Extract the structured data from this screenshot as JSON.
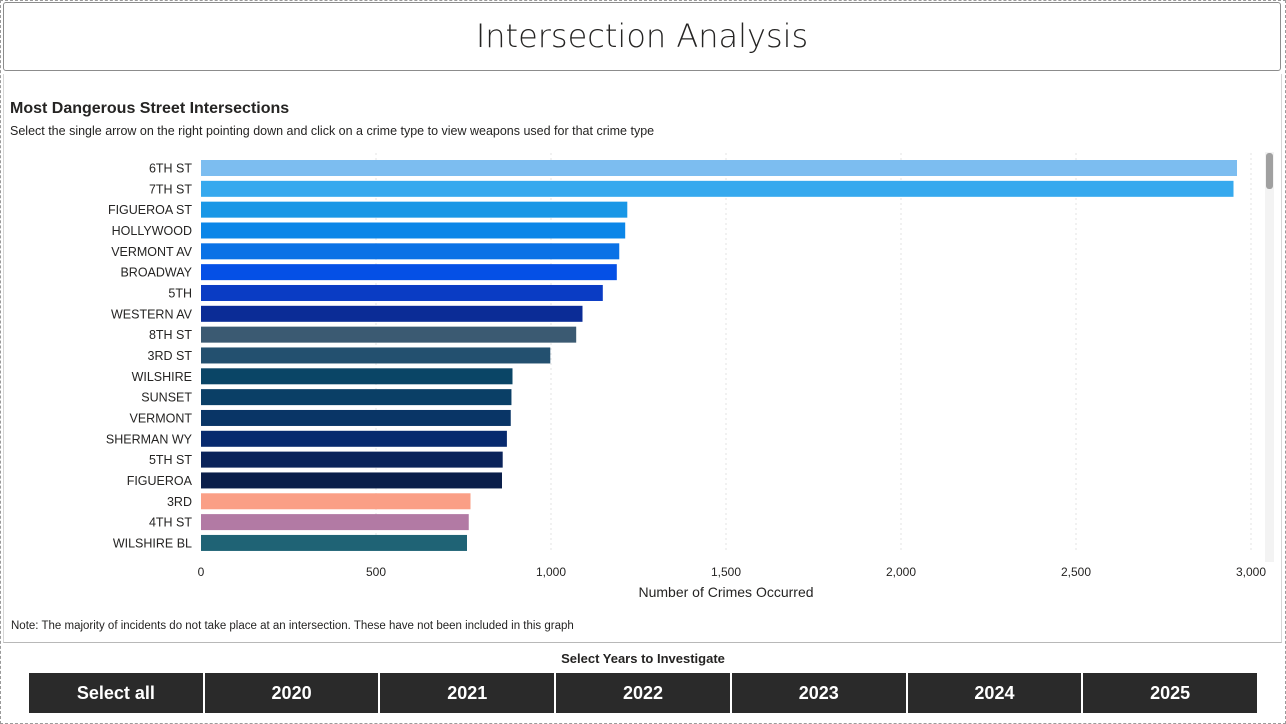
{
  "header": {
    "title": "Intersection Analysis"
  },
  "chart_header": {
    "title": "Most Dangerous Street Intersections",
    "subtitle": "Select the single arrow on the right pointing down and click on a crime type to view weapons used for that crime type"
  },
  "note": "Note: The majority of incidents do not take place at an intersection. These have not been included in this graph",
  "chart_data": {
    "type": "bar",
    "orientation": "horizontal",
    "categories": [
      "6TH ST",
      "7TH ST",
      "FIGUEROA ST",
      "HOLLYWOOD",
      "VERMONT AV",
      "BROADWAY",
      "5TH",
      "WESTERN AV",
      "8TH ST",
      "3RD ST",
      "WILSHIRE",
      "SUNSET",
      "VERMONT",
      "SHERMAN WY",
      "5TH ST",
      "FIGUEROA",
      "3RD",
      "4TH ST",
      "WILSHIRE BL"
    ],
    "values": [
      2960,
      2950,
      1218,
      1212,
      1195,
      1188,
      1148,
      1090,
      1072,
      998,
      890,
      887,
      885,
      874,
      862,
      860,
      770,
      765,
      760
    ],
    "colors": [
      "#7cbdf0",
      "#36a9ee",
      "#1997e6",
      "#0b86e8",
      "#0a72e6",
      "#0550e6",
      "#0a3cc4",
      "#0b2c96",
      "#3b5a72",
      "#23506f",
      "#0a4566",
      "#0a3f66",
      "#093566",
      "#072a6e",
      "#0a235a",
      "#0a1e4a",
      "#fa9f86",
      "#b27aa4",
      "#1f6375"
    ],
    "xlabel": "Number of Crimes Occurred",
    "ylabel": "",
    "xlim": [
      0,
      3000
    ],
    "xticks": [
      0,
      500,
      1000,
      1500,
      2000,
      2500,
      3000
    ],
    "xtick_labels": [
      "0",
      "500",
      "1,000",
      "1,500",
      "2,000",
      "2,500",
      "3,000"
    ],
    "grid": true
  },
  "slicer": {
    "label": "Select Years to Investigate",
    "options": [
      "Select all",
      "2020",
      "2021",
      "2022",
      "2023",
      "2024",
      "2025"
    ]
  }
}
